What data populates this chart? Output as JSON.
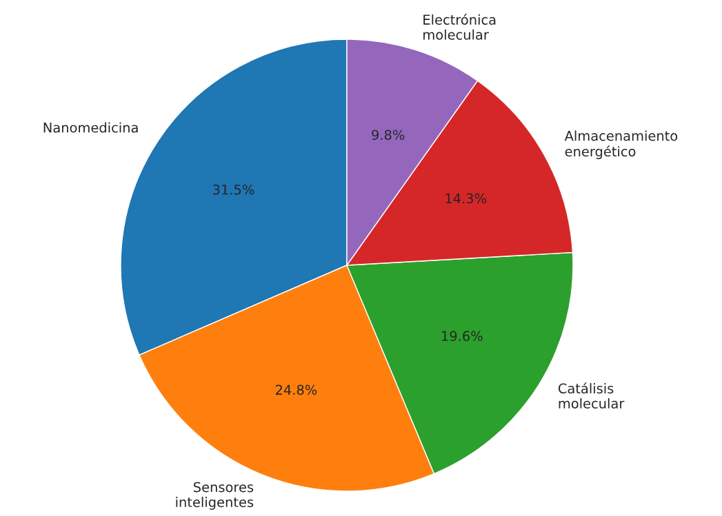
{
  "chart_data": {
    "type": "pie",
    "categories": [
      "Nanomedicina",
      "Sensores\ninteligentes",
      "Catálisis\nmolecular",
      "Almacenamiento\nenergético",
      "Electrónica\nmolecular"
    ],
    "values": [
      31.5,
      24.8,
      19.6,
      14.3,
      9.8
    ],
    "colors": [
      "#1f77b4",
      "#ff7f0e",
      "#2ca02c",
      "#d62728",
      "#9467bd"
    ],
    "value_labels": [
      "31.5%",
      "24.8%",
      "19.6%",
      "14.3%",
      "9.8%"
    ]
  }
}
